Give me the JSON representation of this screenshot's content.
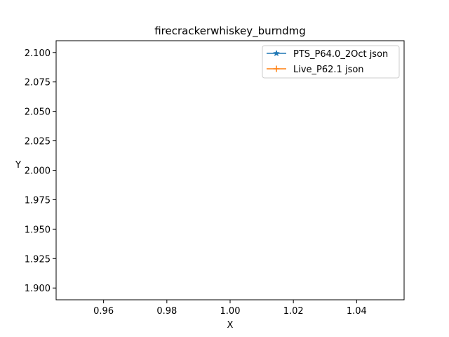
{
  "chart_data": {
    "type": "line",
    "title": "firecrackerwhiskey_burndmg",
    "xlabel": "X",
    "ylabel": "Y",
    "xlim": [
      0.945,
      1.055
    ],
    "ylim": [
      1.89,
      2.11
    ],
    "x_ticks": [
      0.96,
      0.98,
      1.0,
      1.02,
      1.04
    ],
    "x_tick_labels": [
      "0.96",
      "0.98",
      "1.00",
      "1.02",
      "1.04"
    ],
    "y_ticks": [
      1.9,
      1.925,
      1.95,
      1.975,
      2.0,
      2.025,
      2.05,
      2.075,
      2.1
    ],
    "y_tick_labels": [
      "1.900",
      "1.925",
      "1.950",
      "1.975",
      "2.000",
      "2.025",
      "2.050",
      "2.075",
      "2.100"
    ],
    "grid": false,
    "legend_position": "top-right",
    "series": [
      {
        "name": "PTS_P64.0_2Oct json",
        "color": "#1f77b4",
        "marker": "star",
        "x": [],
        "y": []
      },
      {
        "name": "Live_P62.1 json",
        "color": "#ff7f0e",
        "marker": "plus",
        "x": [],
        "y": []
      }
    ]
  }
}
